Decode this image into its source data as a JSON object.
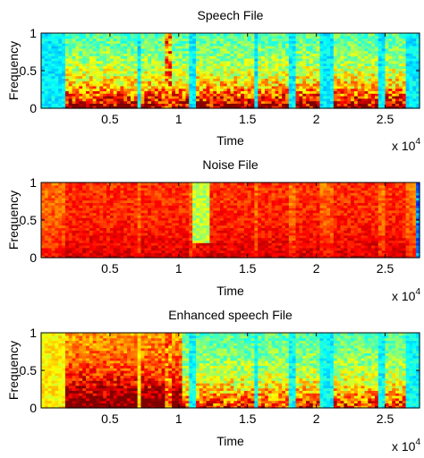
{
  "colors": {
    "colormap": [
      "#00008f",
      "#0000ff",
      "#0080ff",
      "#00ffff",
      "#80ff80",
      "#ffff00",
      "#ff8000",
      "#ff0000",
      "#800000"
    ]
  },
  "chart_data": [
    {
      "type": "heatmap",
      "title": "Speech File",
      "xlabel": "Time",
      "ylabel": "Frequency",
      "xlim": [
        0,
        27500
      ],
      "ylim": [
        0,
        1
      ],
      "xticks": [
        5000,
        10000,
        15000,
        20000,
        25000
      ],
      "xtick_labels": [
        "0.5",
        "1",
        "1.5",
        "2",
        "2.5"
      ],
      "yticks": [
        0,
        0.5,
        1
      ],
      "ytick_labels": [
        "0",
        "0.5",
        "1"
      ],
      "x_exponent": {
        "base": "x 10",
        "exp": "4"
      },
      "grid": false,
      "legend": "none",
      "colormap": "jet"
    },
    {
      "type": "heatmap",
      "title": "Noise File",
      "xlabel": "Time",
      "ylabel": "Frequency",
      "xlim": [
        0,
        27500
      ],
      "ylim": [
        0,
        1
      ],
      "xticks": [
        5000,
        10000,
        15000,
        20000,
        25000
      ],
      "xtick_labels": [
        "0.5",
        "1",
        "1.5",
        "2",
        "2.5"
      ],
      "yticks": [
        0,
        0.5,
        1
      ],
      "ytick_labels": [
        "0",
        "0.5",
        "1"
      ],
      "x_exponent": {
        "base": "x 10",
        "exp": "4"
      },
      "grid": false,
      "legend": "none",
      "colormap": "jet"
    },
    {
      "type": "heatmap",
      "title": "Enhanced speech File",
      "xlabel": "Time",
      "ylabel": "Frequency",
      "xlim": [
        0,
        27500
      ],
      "ylim": [
        0,
        1
      ],
      "xticks": [
        5000,
        10000,
        15000,
        20000,
        25000
      ],
      "xtick_labels": [
        "0.5",
        "1",
        "1.5",
        "2",
        "2.5"
      ],
      "yticks": [
        0,
        0.5,
        1
      ],
      "ytick_labels": [
        "0",
        "0.5",
        "1"
      ],
      "x_exponent": {
        "base": "x 10",
        "exp": "4"
      },
      "grid": false,
      "legend": "none",
      "colormap": "jet"
    }
  ]
}
